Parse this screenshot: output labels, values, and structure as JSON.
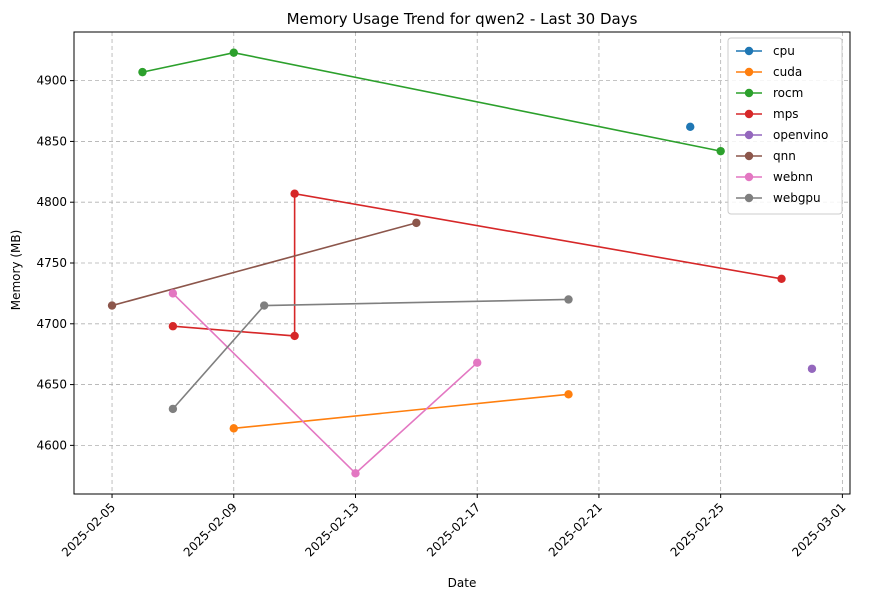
{
  "chart_data": {
    "type": "line",
    "title": "Memory Usage Trend for qwen2 - Last 30 Days",
    "xlabel": "Date",
    "ylabel": "Memory (MB)",
    "xlim": [
      "2025-02-03T18:00",
      "2025-03-01T06:00"
    ],
    "ylim": [
      4560,
      4940
    ],
    "x_ticks": [
      "2025-02-05",
      "2025-02-09",
      "2025-02-13",
      "2025-02-17",
      "2025-02-21",
      "2025-02-25",
      "2025-03-01"
    ],
    "y_ticks": [
      4600,
      4650,
      4700,
      4750,
      4800,
      4850,
      4900
    ],
    "grid": true,
    "legend_position": "top-right",
    "series": [
      {
        "name": "cpu",
        "color": "#1f77b4",
        "points": [
          [
            "2025-02-24",
            4862
          ]
        ]
      },
      {
        "name": "cuda",
        "color": "#ff7f0e",
        "points": [
          [
            "2025-02-09",
            4614
          ],
          [
            "2025-02-20",
            4642
          ]
        ]
      },
      {
        "name": "rocm",
        "color": "#2ca02c",
        "points": [
          [
            "2025-02-06",
            4907
          ],
          [
            "2025-02-09",
            4923
          ],
          [
            "2025-02-25",
            4842
          ]
        ]
      },
      {
        "name": "mps",
        "color": "#d62728",
        "points": [
          [
            "2025-02-07",
            4698
          ],
          [
            "2025-02-11",
            4690
          ],
          [
            "2025-02-11",
            4807
          ],
          [
            "2025-02-27",
            4737
          ]
        ]
      },
      {
        "name": "openvino",
        "color": "#9467bd",
        "points": [
          [
            "2025-02-28",
            4663
          ]
        ]
      },
      {
        "name": "qnn",
        "color": "#8c564b",
        "points": [
          [
            "2025-02-05",
            4715
          ],
          [
            "2025-02-15",
            4783
          ]
        ]
      },
      {
        "name": "webnn",
        "color": "#e377c2",
        "points": [
          [
            "2025-02-07",
            4725
          ],
          [
            "2025-02-13",
            4577
          ],
          [
            "2025-02-17",
            4668
          ]
        ]
      },
      {
        "name": "webgpu",
        "color": "#7f7f7f",
        "points": [
          [
            "2025-02-07",
            4630
          ],
          [
            "2025-02-10",
            4715
          ],
          [
            "2025-02-20",
            4720
          ]
        ]
      }
    ]
  }
}
